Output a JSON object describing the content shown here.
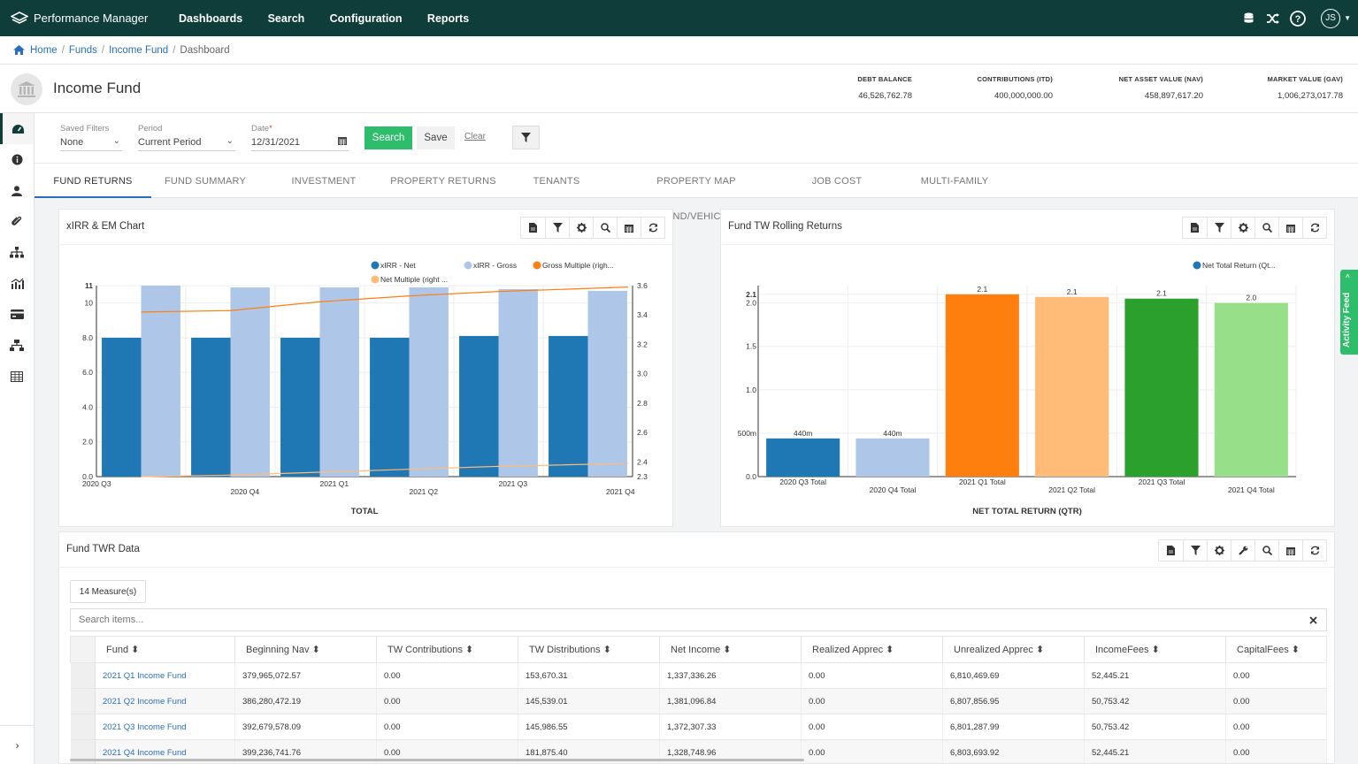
{
  "app": {
    "name": "Performance Manager"
  },
  "nav": [
    "Dashboards",
    "Search",
    "Configuration",
    "Reports"
  ],
  "user": {
    "initials": "JS"
  },
  "breadcrumb": [
    "Home",
    "Funds",
    "Income Fund",
    "Dashboard"
  ],
  "fund": {
    "title": "Income Fund"
  },
  "kpis": [
    {
      "label": "DEBT BALANCE",
      "value": "46,526,762.78"
    },
    {
      "label": "CONTRIBUTIONS (ITD)",
      "value": "400,000,000.00"
    },
    {
      "label": "NET ASSET VALUE (NAV)",
      "value": "458,897,617.20"
    },
    {
      "label": "MARKET VALUE (GAV)",
      "value": "1,006,273,017.78"
    }
  ],
  "filters": {
    "saved_label": "Saved Filters",
    "saved_value": "None",
    "period_label": "Period",
    "period_value": "Current Period",
    "date_label": "Date",
    "date_required": "*",
    "date_value": "12/31/2021",
    "search": "Search",
    "save": "Save",
    "clear": "Clear"
  },
  "tabs": [
    "FUND RETURNS",
    "FUND SUMMARY",
    "INVESTMENT RETURNS",
    "PROPERTY RETURNS",
    "TENANTS",
    "PROPERTY MAP (FUND/VEHICLE)",
    "JOB COST METRICS",
    "MULTI-FAMILY METRICS"
  ],
  "panels": {
    "xirr_title": "xIRR & EM Chart",
    "rolling_title": "Fund TW Rolling Returns",
    "twr_title": "Fund TWR Data"
  },
  "activity_feed": "Activity Feed",
  "colors": {
    "topbar": "#0e3d3a",
    "accent": "#2ebd6b",
    "link": "#2a6ebb",
    "net": "#1f77b4",
    "gross": "#aec7e8",
    "gross_multiple": "#ff7f0e",
    "net_multiple": "#ffbb78"
  },
  "chart_data": [
    {
      "type": "bar",
      "title": "xIRR & EM Chart",
      "xlabel": "TOTAL",
      "categories": [
        "2020 Q3",
        "2020 Q4",
        "2021 Q1",
        "2021 Q2",
        "2021 Q3",
        "2021 Q4"
      ],
      "series": [
        {
          "name": "xIRR - Net",
          "type": "bar",
          "axis": "left",
          "values": [
            8.0,
            8.0,
            8.0,
            8.0,
            8.1,
            8.1
          ]
        },
        {
          "name": "xIRR - Gross",
          "type": "bar",
          "axis": "left",
          "values": [
            11.0,
            10.9,
            10.9,
            10.9,
            10.8,
            10.7
          ]
        },
        {
          "name": "Gross Multiple (righ...",
          "type": "line",
          "axis": "right",
          "values": [
            3.42,
            3.43,
            3.49,
            3.53,
            3.56,
            3.59
          ]
        },
        {
          "name": "Net Multiple (right ...",
          "type": "line",
          "axis": "right",
          "values": [
            2.3,
            2.31,
            2.33,
            2.35,
            2.37,
            2.39
          ]
        }
      ],
      "ylim": [
        0,
        11
      ],
      "yticks": [
        "0.0",
        "2.0",
        "4.0",
        "6.0",
        "8.0",
        "10",
        "11"
      ],
      "y2lim": [
        2.3,
        3.6
      ],
      "y2ticks": [
        "2.3",
        "2.4",
        "2.6",
        "2.8",
        "3.0",
        "3.2",
        "3.4",
        "3.6"
      ],
      "legend": "top-right",
      "grid": true
    },
    {
      "type": "bar",
      "title": "Fund TW Rolling Returns",
      "xlabel": "NET TOTAL RETURN (QTR)",
      "categories": [
        "2020 Q3 Total",
        "2020 Q4 Total",
        "2021 Q1 Total",
        "2021 Q2 Total",
        "2021 Q3 Total",
        "2021 Q4 Total"
      ],
      "series": [
        {
          "name": "Net Total Return (Qt...",
          "values": [
            0.44,
            0.44,
            2.1,
            2.07,
            2.05,
            2.0
          ]
        }
      ],
      "data_labels": [
        "440m",
        "440m",
        "2.1",
        "2.1",
        "2.1",
        "2.0"
      ],
      "bar_colors": [
        "#1f77b4",
        "#aec7e8",
        "#ff7f0e",
        "#ffbb78",
        "#2ca02c",
        "#98df8a"
      ],
      "ylim": [
        0,
        2.2
      ],
      "yticks": [
        "0.0",
        "500m",
        "1.0",
        "1.5",
        "2.0",
        "2.1"
      ],
      "legend": "top-right",
      "grid": true
    }
  ],
  "twr": {
    "measures": "14 Measure(s)",
    "search_placeholder": "Search items...",
    "columns": [
      "Fund ⬍",
      "Beginning Nav ⬍",
      "TW Contributions ⬍",
      "TW Distributions ⬍",
      "Net Income ⬍",
      "Realized Apprec ⬍",
      "Unrealized Apprec ⬍",
      "IncomeFees ⬍",
      "CapitalFees ⬍"
    ],
    "rows": [
      [
        "2021 Q1 Income Fund",
        "379,965,072.57",
        "0.00",
        "153,670.31",
        "1,337,336.26",
        "0.00",
        "6,810,469.69",
        "52,445.21",
        "0.00"
      ],
      [
        "2021 Q2 Income Fund",
        "386,280,472.19",
        "0.00",
        "145,539.01",
        "1,381,096.84",
        "0.00",
        "6,807,856.95",
        "50,753.42",
        "0.00"
      ],
      [
        "2021 Q3 Income Fund",
        "392,679,578.09",
        "0.00",
        "145,986.55",
        "1,372,307.33",
        "0.00",
        "6,801,287.99",
        "50,753.42",
        "0.00"
      ],
      [
        "2021 Q4 Income Fund",
        "399,236,741.76",
        "0.00",
        "181,875.40",
        "1,328,748.96",
        "0.00",
        "6,803,693.92",
        "52,445.21",
        "0.00"
      ]
    ]
  }
}
